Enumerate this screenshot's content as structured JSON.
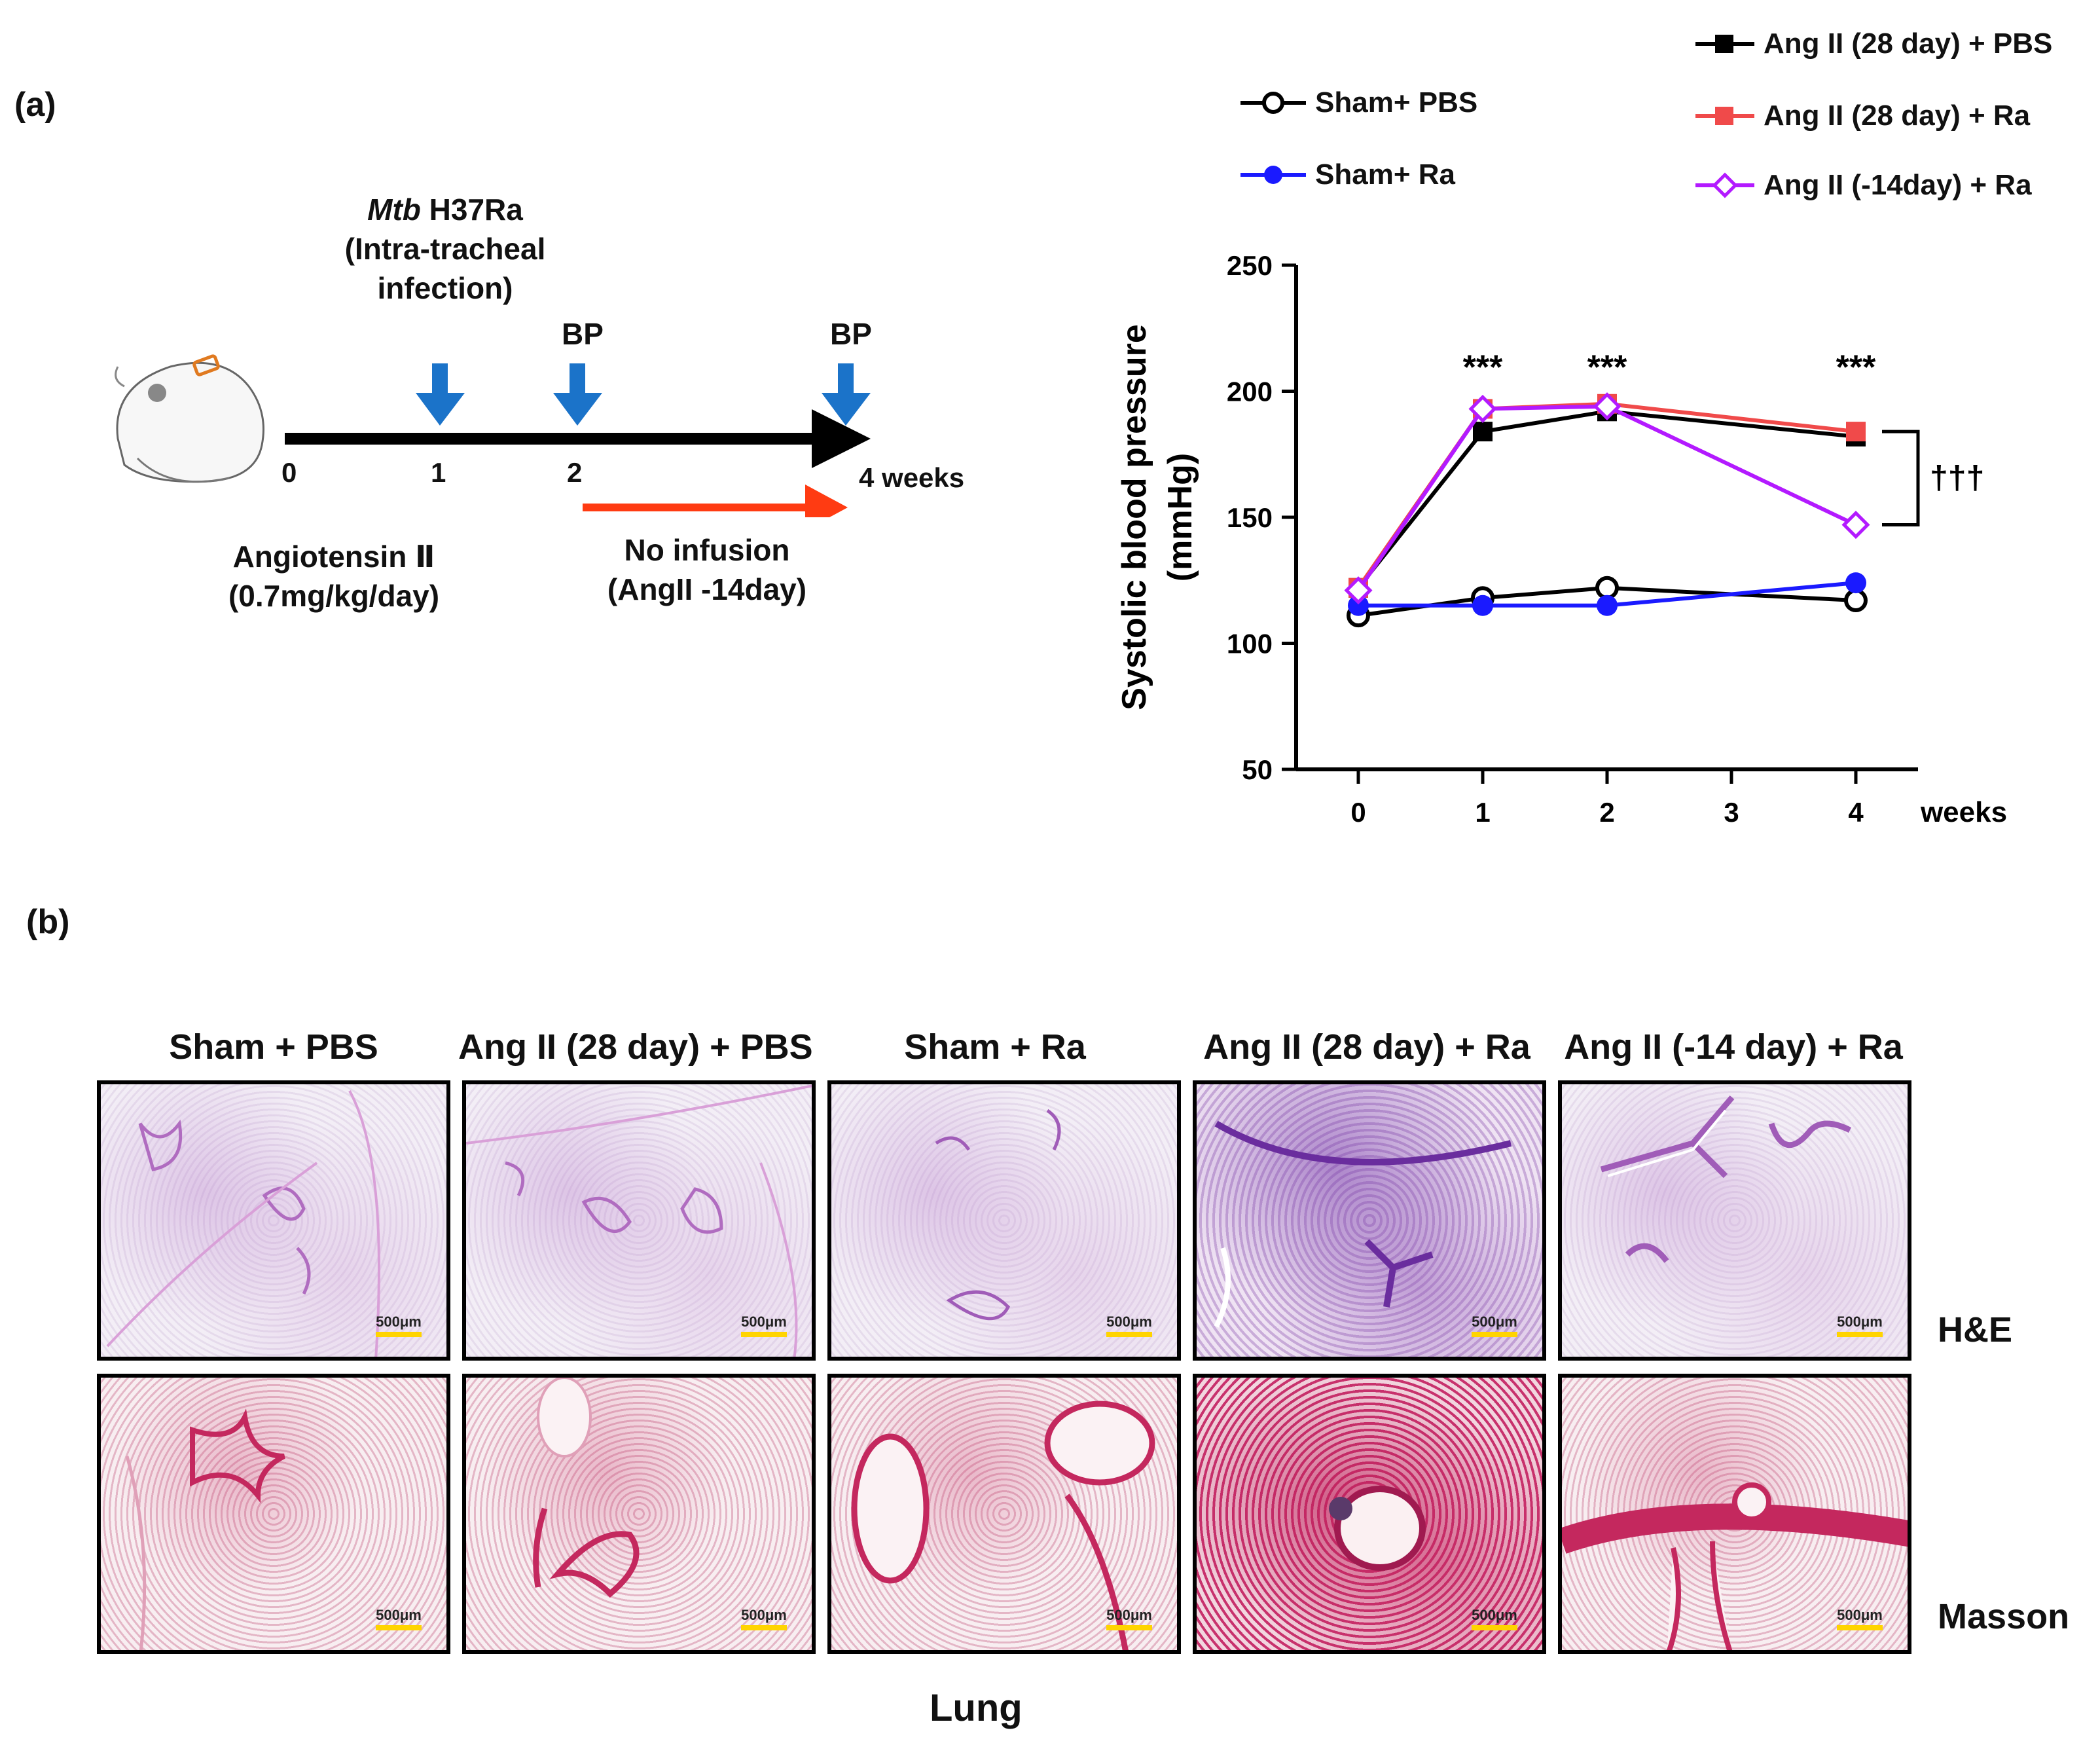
{
  "panel_a": {
    "label": "(a)",
    "timeline": {
      "infection_title_italic": "Mtb",
      "infection_title_rest": " H37Ra",
      "infection_line2": "(Intra-tracheal",
      "infection_line3": "infection)",
      "bp_label": "BP",
      "ticks": [
        "0",
        "1",
        "2",
        "4 weeks"
      ],
      "drug_line1": "Angiotensin Ⅱ",
      "drug_line2": "(0.7mg/kg/day)",
      "no_infusion_line1": "No infusion",
      "no_infusion_line2": "(AngII  -14day)"
    },
    "legend": [
      {
        "label": "Sham+ PBS",
        "color": "#000000",
        "marker": "open-circle"
      },
      {
        "label": "Sham+ Ra",
        "color": "#1a1aff",
        "marker": "filled-circle"
      },
      {
        "label": "Ang II (28 day) + PBS",
        "color": "#000000",
        "marker": "filled-square"
      },
      {
        "label": "Ang II (28 day) + Ra",
        "color": "#f04a4a",
        "marker": "filled-square"
      },
      {
        "label": "Ang II (-14day) + Ra",
        "color": "#b31aff",
        "marker": "open-diamond"
      }
    ],
    "significance": [
      "***",
      "***",
      "***"
    ],
    "dagger": "†††"
  },
  "chart_data": {
    "type": "line",
    "title": "",
    "xlabel": "weeks",
    "ylabel": "Systolic blood pressure (mmHg)",
    "ylim": [
      50,
      250
    ],
    "xlim": [
      -0.5,
      4.5
    ],
    "yticks": [
      50,
      100,
      150,
      200,
      250
    ],
    "xticks": [
      0,
      1,
      2,
      3,
      4
    ],
    "series": [
      {
        "name": "Sham+ PBS",
        "color": "#000000",
        "marker": "open-circle",
        "x": [
          0,
          1,
          2,
          4
        ],
        "values": [
          111,
          118,
          122,
          117
        ]
      },
      {
        "name": "Sham+ Ra",
        "color": "#1a1aff",
        "marker": "filled-circle",
        "x": [
          0,
          1,
          2,
          4
        ],
        "values": [
          115,
          115,
          115,
          124
        ]
      },
      {
        "name": "Ang II (28 day) + PBS",
        "color": "#000000",
        "marker": "filled-square",
        "x": [
          0,
          1,
          2,
          4
        ],
        "values": [
          122,
          184,
          192,
          182
        ]
      },
      {
        "name": "Ang II (28 day) + Ra",
        "color": "#f04a4a",
        "marker": "filled-square",
        "x": [
          0,
          1,
          2,
          4
        ],
        "values": [
          122,
          193,
          195,
          184
        ]
      },
      {
        "name": "Ang II (-14day) + Ra",
        "color": "#b31aff",
        "marker": "open-diamond",
        "x": [
          0,
          1,
          2,
          4
        ],
        "values": [
          121,
          193,
          194,
          147
        ]
      }
    ],
    "annotations": [
      {
        "text": "***",
        "x": 1
      },
      {
        "text": "***",
        "x": 2
      },
      {
        "text": "***",
        "x": 4
      },
      {
        "text": "†††",
        "between": [
          184,
          147
        ],
        "x": 4
      }
    ]
  },
  "panel_b": {
    "label": "(b)",
    "columns": [
      "Sham + PBS",
      "Ang II (28 day) + PBS",
      "Sham + Ra",
      "Ang II (28 day) + Ra",
      "Ang II (-14 day) + Ra"
    ],
    "rows": [
      "H&E",
      "Masson"
    ],
    "scale_bar": "500μm",
    "footer": "Lung"
  }
}
